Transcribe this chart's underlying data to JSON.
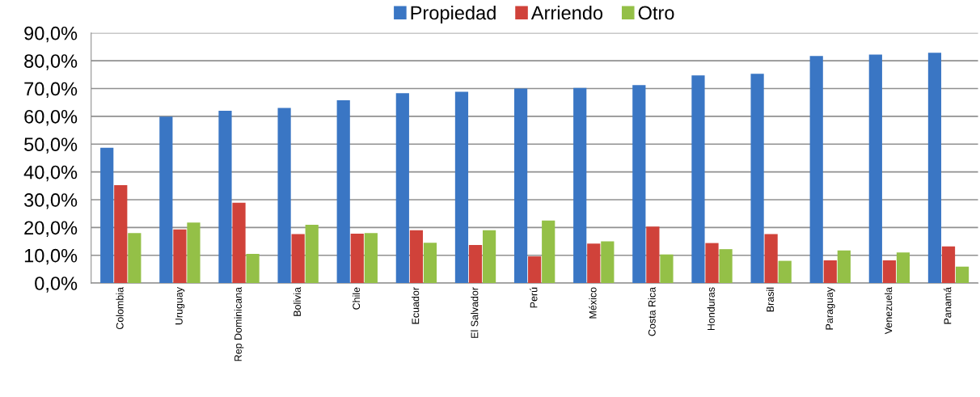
{
  "chart_data": {
    "type": "bar",
    "categories": [
      "Colombia",
      "Uruguay",
      "Rep Dominicana",
      "Bolivia",
      "Chile",
      "Ecuador",
      "El Salvador",
      "Perú",
      "México",
      "Costa Rica",
      "Honduras",
      "Brasil",
      "Paraguay",
      "Venezuela",
      "Panamá"
    ],
    "series": [
      {
        "name": "Propiedad",
        "color": "#3a76c4",
        "values": [
          48.7,
          59.9,
          62,
          63,
          65.8,
          68.3,
          68.8,
          70,
          70.2,
          71.2,
          74.7,
          75.3,
          81.7,
          82.2,
          82.9
        ]
      },
      {
        "name": "Arriendo",
        "color": "#d0423a",
        "values": [
          35.2,
          19.3,
          28.9,
          17.6,
          17.8,
          19,
          13.7,
          9.6,
          14.2,
          20.3,
          14.4,
          17.6,
          8.2,
          8.2,
          13.2
        ]
      },
      {
        "name": "Otro",
        "color": "#94c047",
        "values": [
          18,
          21.8,
          10.5,
          21,
          18,
          14.5,
          19,
          22.5,
          15,
          10.3,
          12.2,
          8,
          11.7,
          11,
          5.9
        ]
      }
    ],
    "ylim": [
      0,
      90
    ],
    "yticks": [
      {
        "value": 0,
        "label": "0,0%"
      },
      {
        "value": 10,
        "label": "10,0%"
      },
      {
        "value": 20,
        "label": "20,0%"
      },
      {
        "value": 30,
        "label": "30,0%"
      },
      {
        "value": 40,
        "label": "40,0%"
      },
      {
        "value": 50,
        "label": "50,0%"
      },
      {
        "value": 60,
        "label": "60,0%"
      },
      {
        "value": 70,
        "label": "70,0%"
      },
      {
        "value": 80,
        "label": "80,0%"
      },
      {
        "value": 90,
        "label": "90,0%"
      }
    ],
    "grid": "y",
    "legend": "top"
  }
}
